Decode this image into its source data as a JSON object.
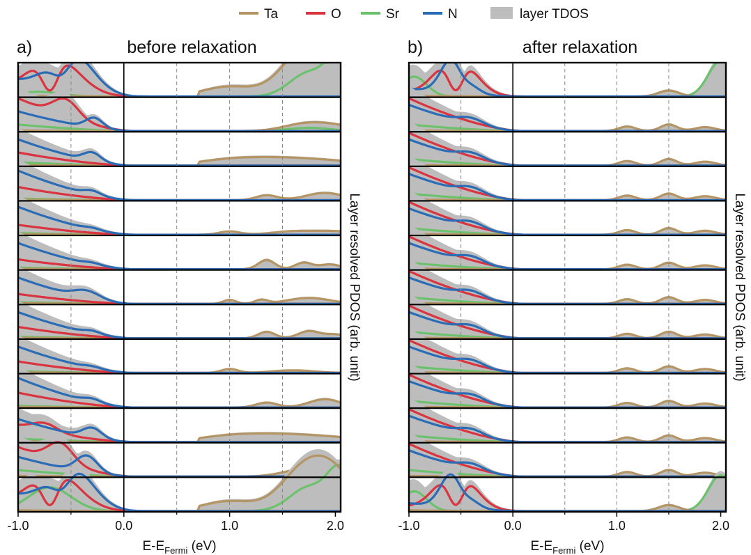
{
  "figure": {
    "legend": [
      {
        "name": "Ta",
        "color": "#b59563"
      },
      {
        "name": "O",
        "color": "#d9343f"
      },
      {
        "name": "Sr",
        "color": "#6cc26c"
      },
      {
        "name": "N",
        "color": "#2b6cb6"
      },
      {
        "name": "layer TDOS",
        "color": "#bdbdbd"
      }
    ],
    "panels": [
      {
        "label": "a)",
        "title": "before relaxation"
      },
      {
        "label": "b)",
        "title": "after relaxation"
      }
    ]
  },
  "chart_data": [
    {
      "type": "area",
      "panel": "a)",
      "title": "before relaxation",
      "xlabel": "E-E",
      "xlabel_sub": "Fermi",
      "xlabel_unit": " (eV)",
      "ylabel": "Layer resolved PDOS (arb. unit)",
      "xlim": [
        -1.0,
        2.05
      ],
      "xticks": [
        -1.0,
        0.0,
        1.0,
        2.0
      ],
      "xticklabels": [
        "-1.0",
        "0.0",
        "1.0",
        "2.0"
      ],
      "grid": "dashed vertical lines at -0.5, 0.5, 1.0, 1.5",
      "fermi_line": 0.0,
      "layers": 13,
      "series": [
        {
          "name": "Ta",
          "color": "#b59563"
        },
        {
          "name": "O",
          "color": "#d9343f"
        },
        {
          "name": "Sr",
          "color": "#6cc26c"
        },
        {
          "name": "N",
          "color": "#2b6cb6"
        },
        {
          "name": "layer TDOS",
          "color": "#bdbdbd"
        }
      ]
    },
    {
      "type": "area",
      "panel": "b)",
      "title": "after relaxation",
      "xlabel": "E-E",
      "xlabel_sub": "Fermi",
      "xlabel_unit": " (eV)",
      "ylabel": "Layer resolved PDOS (arb. unit)",
      "xlim": [
        -1.0,
        2.05
      ],
      "xticks": [
        -1.0,
        0.0,
        1.0,
        2.0
      ],
      "xticklabels": [
        "-1.0",
        "0.0",
        "1.0",
        "2.0"
      ],
      "grid": "dashed vertical lines at -0.5, 0.5, 1.0, 1.5",
      "fermi_line": 0.0,
      "layers": 13,
      "series": [
        {
          "name": "Ta",
          "color": "#b59563"
        },
        {
          "name": "O",
          "color": "#d9343f"
        },
        {
          "name": "Sr",
          "color": "#6cc26c"
        },
        {
          "name": "N",
          "color": "#2b6cb6"
        },
        {
          "name": "layer TDOS",
          "color": "#bdbdbd"
        }
      ]
    }
  ]
}
